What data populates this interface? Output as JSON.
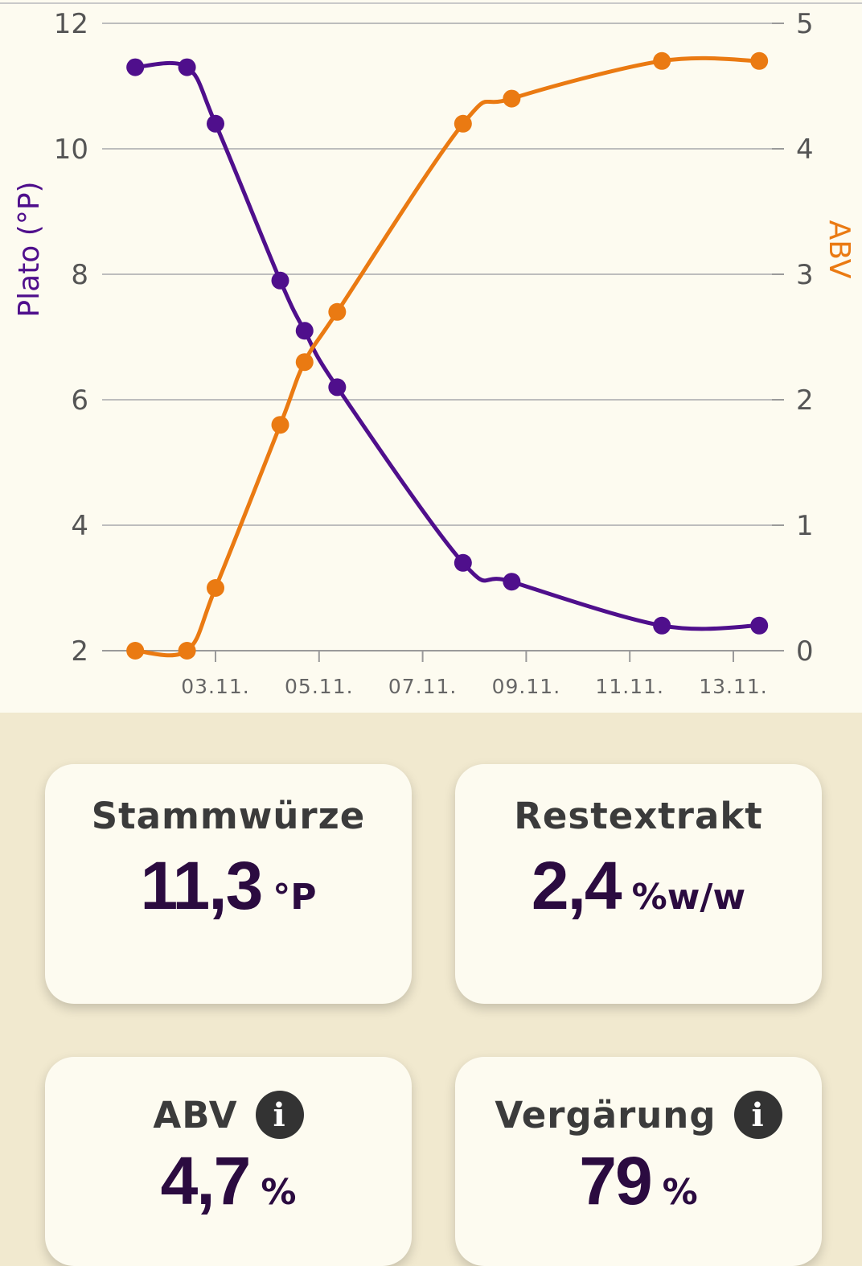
{
  "colors": {
    "plato_series": "#4f0f8c",
    "abv_series": "#ea7a12",
    "grid": "#bdbdbd",
    "page_background": "#f1e9cf",
    "panel_background": "#fdfbf0",
    "value_text": "#2b0b40"
  },
  "chart_data": {
    "type": "line",
    "xlabel": "",
    "x_tick_labels": [
      "03.11.",
      "05.11.",
      "07.11.",
      "09.11.",
      "11.11.",
      "13.11."
    ],
    "x_tick_days": [
      3,
      5,
      7,
      9,
      11,
      13
    ],
    "y_left": {
      "label": "Plato (°P)",
      "lim": [
        2,
        12
      ],
      "ticks": [
        "2",
        "4",
        "6",
        "8",
        "10",
        "12"
      ]
    },
    "y_right": {
      "label": "ABV",
      "lim": [
        0,
        5
      ],
      "ticks": [
        "0",
        "1",
        "2",
        "3",
        "4",
        "5"
      ]
    },
    "grid": true,
    "series": [
      {
        "name": "Plato (°P)",
        "axis": "left",
        "x_days": [
          1.45,
          2.45,
          3.0,
          4.25,
          4.72,
          5.35,
          7.78,
          8.72,
          11.62,
          13.5
        ],
        "values": [
          11.3,
          11.3,
          10.4,
          7.9,
          7.1,
          6.2,
          3.4,
          3.1,
          2.4,
          2.4
        ]
      },
      {
        "name": "ABV",
        "axis": "right",
        "x_days": [
          1.45,
          2.45,
          3.0,
          4.25,
          4.72,
          5.35,
          7.78,
          8.72,
          11.62,
          13.5
        ],
        "values": [
          0.0,
          0.0,
          0.5,
          1.8,
          2.3,
          2.7,
          4.2,
          4.4,
          4.7,
          4.7
        ]
      }
    ]
  },
  "cards": {
    "original_gravity": {
      "label": "Stammwürze",
      "value": "11,3",
      "unit": "°P"
    },
    "residual_extract": {
      "label": "Restextrakt",
      "value": "2,4",
      "unit": "%w/w"
    },
    "abv": {
      "label": "ABV",
      "value": "4,7",
      "unit": "%",
      "info_icon": "info-icon"
    },
    "attenuation": {
      "label": "Vergärung",
      "value": "79",
      "unit": "%",
      "info_icon": "info-icon"
    }
  },
  "info_glyph": "i"
}
